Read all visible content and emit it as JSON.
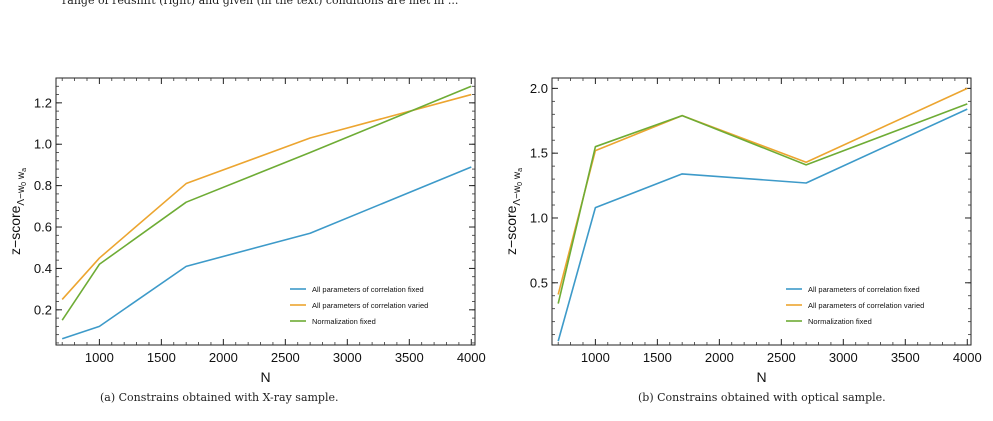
{
  "top_text": "range of redshift (right) and given (in the text) conditions are met in ...",
  "colors": {
    "fixed": "#3d9ac9",
    "varied": "#eca530",
    "norm": "#6eac35"
  },
  "captions": {
    "a": "(a) Constrains obtained with X-ray sample.",
    "b": "(b) Constrains obtained with optical sample."
  },
  "chart_data": [
    {
      "type": "line",
      "xlabel": "N",
      "ylabel_main": "z−score",
      "ylabel_sub": "Λ−w",
      "ylabel_sub0": "0",
      "ylabel_sub_w": " w",
      "ylabel_sub_a": "a",
      "xlim": [
        650,
        4030
      ],
      "ylim": [
        0.03,
        1.32
      ],
      "xticks": [
        1000,
        1500,
        2000,
        2500,
        3000,
        3500,
        4000
      ],
      "yticks": [
        0.2,
        0.4,
        0.6,
        0.8,
        1.0,
        1.2
      ],
      "ytick_labels": [
        "0.2",
        "0.4",
        "0.6",
        "0.8",
        "1.0",
        "1.2"
      ],
      "x": [
        700,
        1000,
        1700,
        2700,
        4000
      ],
      "series": [
        {
          "name": "All parameters of correlation fixed",
          "color": "#3d9ac9",
          "values": [
            0.06,
            0.12,
            0.41,
            0.57,
            0.89
          ]
        },
        {
          "name": "All parameters of correlation varied",
          "color": "#eca530",
          "values": [
            0.25,
            0.45,
            0.81,
            1.03,
            1.24
          ]
        },
        {
          "name": "Normalization fixed",
          "color": "#6eac35",
          "values": [
            0.15,
            0.42,
            0.72,
            0.96,
            1.28
          ]
        }
      ],
      "legend": "bottom-right",
      "grid": false
    },
    {
      "type": "line",
      "xlabel": "N",
      "ylabel_main": "z−score",
      "ylabel_sub": "Λ−w",
      "ylabel_sub0": "0",
      "ylabel_sub_w": " w",
      "ylabel_sub_a": "a",
      "xlim": [
        650,
        4030
      ],
      "ylim": [
        0.02,
        2.08
      ],
      "xticks": [
        1000,
        1500,
        2000,
        2500,
        3000,
        3500,
        4000
      ],
      "yticks": [
        0.5,
        1.0,
        1.5,
        2.0
      ],
      "ytick_labels": [
        "0.5",
        "1.0",
        "1.5",
        "2.0"
      ],
      "x": [
        700,
        1000,
        1700,
        2700,
        4000
      ],
      "series": [
        {
          "name": "All parameters of correlation fixed",
          "color": "#3d9ac9",
          "values": [
            0.05,
            1.08,
            1.34,
            1.27,
            1.84
          ]
        },
        {
          "name": "All parameters of correlation varied",
          "color": "#eca530",
          "values": [
            0.41,
            1.52,
            1.79,
            1.43,
            2.0
          ]
        },
        {
          "name": "Normalization fixed",
          "color": "#6eac35",
          "values": [
            0.34,
            1.55,
            1.79,
            1.41,
            1.88
          ]
        }
      ],
      "legend": "bottom-right",
      "grid": false
    }
  ]
}
